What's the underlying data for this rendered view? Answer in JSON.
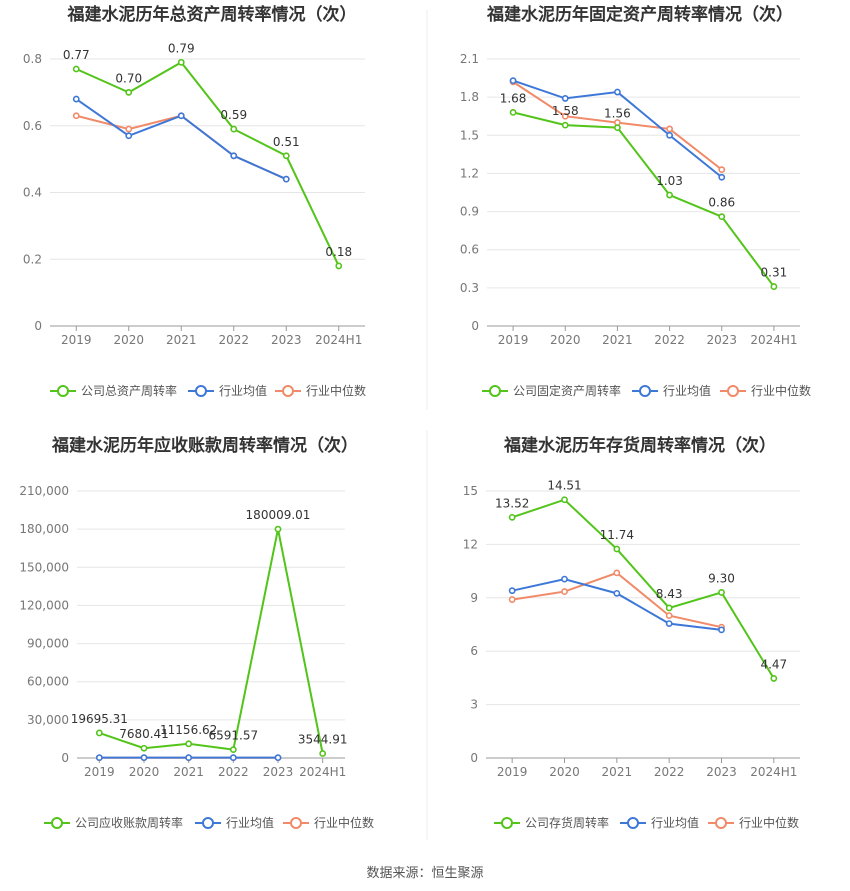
{
  "source": "数据来源：恒生聚源",
  "colors": {
    "company": "#52c41a",
    "avg": "#3d78d8",
    "median": "#f08a68"
  },
  "charts": [
    {
      "title": "福建水泥历年总资产周转率情况（次）",
      "legend": [
        "公司总资产周转率",
        "行业均值",
        "行业中位数"
      ],
      "x_ticks": [
        "2019",
        "2020",
        "2021",
        "2022",
        "2023",
        "2024H1"
      ],
      "y_ticks": [
        "0",
        "0.2",
        "0.4",
        "0.6",
        "0.8"
      ],
      "company_labels": [
        "0.77",
        "0.70",
        "0.79",
        "0.59",
        "0.51",
        "0.18"
      ]
    },
    {
      "title": "福建水泥历年固定资产周转率情况（次）",
      "legend": [
        "公司固定资产周转率",
        "行业均值",
        "行业中位数"
      ],
      "x_ticks": [
        "2019",
        "2020",
        "2021",
        "2022",
        "2023",
        "2024H1"
      ],
      "y_ticks": [
        "0",
        "0.3",
        "0.6",
        "0.9",
        "1.2",
        "1.5",
        "1.8",
        "2.1"
      ],
      "company_labels": [
        "1.68",
        "1.58",
        "1.56",
        "1.03",
        "0.86",
        "0.31"
      ]
    },
    {
      "title": "福建水泥历年应收账款周转率情况（次）",
      "legend": [
        "公司应收账款周转率",
        "行业均值",
        "行业中位数"
      ],
      "x_ticks": [
        "2019",
        "2020",
        "2021",
        "2022",
        "2023",
        "2024H1"
      ],
      "y_ticks": [
        "0",
        "30,000",
        "60,000",
        "90,000",
        "120,000",
        "150,000",
        "180,000",
        "210,000"
      ],
      "company_labels": [
        "19695.31",
        "7680.41",
        "11156.62",
        "6591.57",
        "180009.01",
        "3544.91"
      ]
    },
    {
      "title": "福建水泥历年存货周转率情况（次）",
      "legend": [
        "公司存货周转率",
        "行业均值",
        "行业中位数"
      ],
      "x_ticks": [
        "2019",
        "2020",
        "2021",
        "2022",
        "2023",
        "2024H1"
      ],
      "y_ticks": [
        "0",
        "3",
        "6",
        "9",
        "12",
        "15"
      ],
      "company_labels": [
        "13.52",
        "14.51",
        "11.74",
        "8.43",
        "9.30",
        "4.47"
      ]
    }
  ],
  "chart_data": [
    {
      "type": "line",
      "categories": [
        "2019",
        "2020",
        "2021",
        "2022",
        "2023",
        "2024H1"
      ],
      "ylim": [
        0,
        0.8
      ],
      "series": [
        {
          "name": "公司总资产周转率",
          "values": [
            0.77,
            0.7,
            0.79,
            0.59,
            0.51,
            0.18
          ]
        },
        {
          "name": "行业均值",
          "values": [
            0.68,
            0.57,
            0.63,
            0.51,
            0.44,
            null
          ]
        },
        {
          "name": "行业中位数",
          "values": [
            0.63,
            0.59,
            0.63,
            0.51,
            0.44,
            null
          ]
        }
      ]
    },
    {
      "type": "line",
      "categories": [
        "2019",
        "2020",
        "2021",
        "2022",
        "2023",
        "2024H1"
      ],
      "ylim": [
        0,
        2.1
      ],
      "series": [
        {
          "name": "公司固定资产周转率",
          "values": [
            1.68,
            1.58,
            1.56,
            1.03,
            0.86,
            0.31
          ]
        },
        {
          "name": "行业均值",
          "values": [
            1.93,
            1.79,
            1.84,
            1.5,
            1.17,
            null
          ]
        },
        {
          "name": "行业中位数",
          "values": [
            1.92,
            1.65,
            1.6,
            1.55,
            1.23,
            null
          ]
        }
      ]
    },
    {
      "type": "line",
      "categories": [
        "2019",
        "2020",
        "2021",
        "2022",
        "2023",
        "2024H1"
      ],
      "ylim": [
        0,
        210000
      ],
      "series": [
        {
          "name": "公司应收账款周转率",
          "values": [
            19695.31,
            7680.41,
            11156.62,
            6591.57,
            180009.01,
            3544.91
          ]
        },
        {
          "name": "行业均值",
          "values": [
            300,
            300,
            300,
            300,
            300,
            null
          ]
        },
        {
          "name": "行业中位数",
          "values": [
            200,
            200,
            200,
            200,
            200,
            null
          ]
        }
      ]
    },
    {
      "type": "line",
      "categories": [
        "2019",
        "2020",
        "2021",
        "2022",
        "2023",
        "2024H1"
      ],
      "ylim": [
        0,
        15
      ],
      "series": [
        {
          "name": "公司存货周转率",
          "values": [
            13.52,
            14.51,
            11.74,
            8.43,
            9.3,
            4.47
          ]
        },
        {
          "name": "行业均值",
          "values": [
            9.4,
            10.05,
            9.25,
            7.55,
            7.2,
            null
          ]
        },
        {
          "name": "行业中位数",
          "values": [
            8.9,
            9.35,
            10.4,
            8.0,
            7.35,
            null
          ]
        }
      ]
    }
  ]
}
